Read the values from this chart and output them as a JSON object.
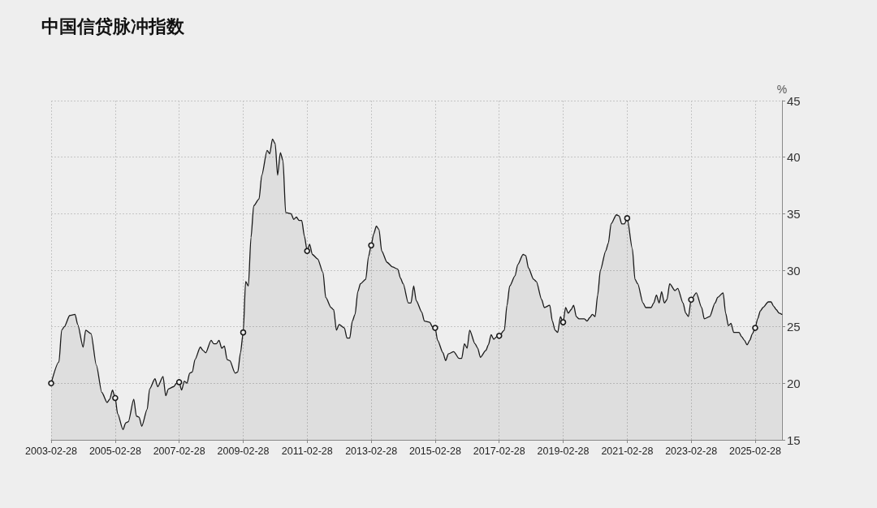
{
  "chart_data": {
    "type": "area",
    "title": "中国信贷脉冲指数",
    "ylabel": "%",
    "xlim": [
      "2003-02-28",
      "2025-12-31"
    ],
    "xticks": [
      "2003-02-28",
      "2005-02-28",
      "2007-02-28",
      "2009-02-28",
      "2011-02-28",
      "2013-02-28",
      "2015-02-28",
      "2017-02-28",
      "2019-02-28",
      "2021-02-28",
      "2023-02-28",
      "2025-02-28"
    ],
    "ylim": [
      15,
      45
    ],
    "yticks": [
      15,
      20,
      25,
      30,
      35,
      40,
      45
    ],
    "grid": true,
    "series": [
      {
        "color": "#1a1a1a",
        "marker": "none",
        "x": [
          "2003-02-28",
          "2003-05-28",
          "2003-06-28",
          "2003-07-28",
          "2003-09-28",
          "2003-11-28",
          "2003-12-28",
          "2004-02-28",
          "2004-03-28",
          "2004-05-28",
          "2004-07-28",
          "2004-09-28",
          "2004-11-28",
          "2004-12-28",
          "2005-01-28",
          "2005-02-28",
          "2005-03-28",
          "2005-05-28",
          "2005-06-28",
          "2005-07-28",
          "2005-09-28",
          "2005-10-28",
          "2005-11-28",
          "2005-12-28",
          "2006-02-28",
          "2006-03-28",
          "2006-05-28",
          "2006-06-28",
          "2006-08-28",
          "2006-09-28",
          "2006-10-28",
          "2006-12-28",
          "2007-01-28",
          "2007-02-28",
          "2007-03-28",
          "2007-04-28",
          "2007-05-28",
          "2007-06-28",
          "2007-07-28",
          "2007-08-28",
          "2007-10-28",
          "2007-11-28",
          "2007-12-28",
          "2008-02-28",
          "2008-03-28",
          "2008-04-28",
          "2008-05-28",
          "2008-06-28",
          "2008-07-28",
          "2008-08-28",
          "2008-09-28",
          "2008-11-28",
          "2008-12-28",
          "2009-01-28",
          "2009-02-28",
          "2009-03-28",
          "2009-04-28",
          "2009-05-28",
          "2009-06-28",
          "2009-08-28",
          "2009-09-28",
          "2009-11-28",
          "2009-12-28",
          "2010-01-28",
          "2010-02-28",
          "2010-03-28",
          "2010-04-28",
          "2010-05-28",
          "2010-06-28",
          "2010-08-28",
          "2010-09-28",
          "2010-10-28",
          "2010-11-28",
          "2010-12-28",
          "2011-01-28",
          "2011-02-28",
          "2011-03-28",
          "2011-04-28",
          "2011-06-28",
          "2011-08-28",
          "2011-09-28",
          "2011-11-28",
          "2011-12-28",
          "2012-01-28",
          "2012-02-28",
          "2012-04-28",
          "2012-05-28",
          "2012-06-28",
          "2012-07-28",
          "2012-08-28",
          "2012-09-28",
          "2012-10-28",
          "2012-12-28",
          "2013-01-28",
          "2013-02-28",
          "2013-03-28",
          "2013-04-28",
          "2013-05-28",
          "2013-06-28",
          "2013-08-28",
          "2013-10-28",
          "2013-12-28",
          "2014-01-28",
          "2014-02-28",
          "2014-04-28",
          "2014-05-28",
          "2014-06-28",
          "2014-07-28",
          "2014-09-28",
          "2014-10-28",
          "2014-12-28",
          "2015-01-28",
          "2015-02-28",
          "2015-03-28",
          "2015-05-28",
          "2015-06-28",
          "2015-07-28",
          "2015-09-28",
          "2015-11-28",
          "2015-12-28",
          "2016-01-28",
          "2016-02-28",
          "2016-03-28",
          "2016-05-28",
          "2016-06-28",
          "2016-07-28",
          "2016-09-28",
          "2016-10-28",
          "2016-11-28",
          "2016-12-28",
          "2017-01-28",
          "2017-02-28",
          "2017-04-28",
          "2017-05-28",
          "2017-06-28",
          "2017-08-28",
          "2017-09-28",
          "2017-11-28",
          "2017-12-28",
          "2018-01-28",
          "2018-03-28",
          "2018-04-28",
          "2018-06-28",
          "2018-07-28",
          "2018-09-28",
          "2018-10-28",
          "2018-11-28",
          "2018-12-28",
          "2019-01-28",
          "2019-02-28",
          "2019-03-28",
          "2019-04-28",
          "2019-05-28",
          "2019-06-28",
          "2019-07-28",
          "2019-08-28",
          "2019-10-28",
          "2019-11-28",
          "2019-12-28",
          "2020-01-28",
          "2020-02-28",
          "2020-03-28",
          "2020-04-28",
          "2020-06-28",
          "2020-07-28",
          "2020-08-28",
          "2020-10-28",
          "2020-11-28",
          "2020-12-28",
          "2021-01-28",
          "2021-02-28",
          "2021-04-28",
          "2021-05-28",
          "2021-06-28",
          "2021-08-28",
          "2021-09-28",
          "2021-11-28",
          "2021-12-28",
          "2022-01-28",
          "2022-02-28",
          "2022-03-28",
          "2022-04-28",
          "2022-05-28",
          "2022-06-28",
          "2022-08-28",
          "2022-09-28",
          "2022-11-28",
          "2022-12-28",
          "2023-01-28",
          "2023-02-28",
          "2023-04-28",
          "2023-06-28",
          "2023-07-28",
          "2023-09-28",
          "2023-11-28",
          "2023-12-28",
          "2024-02-28",
          "2024-03-28",
          "2024-04-28",
          "2024-05-28",
          "2024-06-28",
          "2024-08-28",
          "2024-09-28",
          "2024-10-28",
          "2024-11-28",
          "2024-12-28",
          "2025-01-28",
          "2025-02-28",
          "2025-03-28",
          "2025-04-28",
          "2025-05-28",
          "2025-07-28",
          "2025-08-28",
          "2025-09-28",
          "2025-10-28",
          "2025-11-28",
          "2025-12-28"
        ],
        "values": [
          20.0,
          21.9,
          24.7,
          25.0,
          26.0,
          26.1,
          25.2,
          23.2,
          24.7,
          24.4,
          21.6,
          19.2,
          18.3,
          18.6,
          19.4,
          18.7,
          17.3,
          15.9,
          16.5,
          16.6,
          18.6,
          17.1,
          17.0,
          16.2,
          17.7,
          19.5,
          20.4,
          19.7,
          20.6,
          18.9,
          19.5,
          19.7,
          20.0,
          20.1,
          19.4,
          20.2,
          20.0,
          20.9,
          21.0,
          22.1,
          23.2,
          22.9,
          22.7,
          23.8,
          23.5,
          23.5,
          23.8,
          23.1,
          23.3,
          22.1,
          22.0,
          20.9,
          21.0,
          22.7,
          24.5,
          29.0,
          28.6,
          32.9,
          35.7,
          36.3,
          38.4,
          40.6,
          40.3,
          41.6,
          41.2,
          38.4,
          40.4,
          39.7,
          35.1,
          35.0,
          34.5,
          34.7,
          34.4,
          34.4,
          33.0,
          31.7,
          32.3,
          31.4,
          31.0,
          29.8,
          27.6,
          26.7,
          26.5,
          24.7,
          25.2,
          24.9,
          24.0,
          24.0,
          25.5,
          26.1,
          28.1,
          28.8,
          29.2,
          31.2,
          32.2,
          33.2,
          33.9,
          33.6,
          31.7,
          30.7,
          30.3,
          30.1,
          29.3,
          28.8,
          27.1,
          27.1,
          28.6,
          27.3,
          26.3,
          25.5,
          25.4,
          25.0,
          24.9,
          23.8,
          22.7,
          22.0,
          22.6,
          22.8,
          22.2,
          22.2,
          23.5,
          23.1,
          24.7,
          23.5,
          23.1,
          22.3,
          22.9,
          23.4,
          24.3,
          23.9,
          24.1,
          24.2,
          24.7,
          26.9,
          28.6,
          29.5,
          30.5,
          31.4,
          31.3,
          30.2,
          29.2,
          29.0,
          27.4,
          26.7,
          26.9,
          25.5,
          24.7,
          24.5,
          25.9,
          25.4,
          26.7,
          26.2,
          26.5,
          26.9,
          25.9,
          25.7,
          25.7,
          25.5,
          25.8,
          26.1,
          25.9,
          27.8,
          30.0,
          31.7,
          32.4,
          34.1,
          34.9,
          34.8,
          34.1,
          34.1,
          34.6,
          31.9,
          29.2,
          28.8,
          27.1,
          26.7,
          26.7,
          27.1,
          27.8,
          27.1,
          28.1,
          27.1,
          27.4,
          28.8,
          28.2,
          28.4,
          27.1,
          26.2,
          25.9,
          27.4,
          28.0,
          26.7,
          25.7,
          25.9,
          27.1,
          27.6,
          28.0,
          26.2,
          25.1,
          25.3,
          24.5,
          24.5,
          24.1,
          23.8,
          23.4,
          23.8,
          24.4,
          24.9,
          25.7,
          26.4,
          26.7,
          27.2,
          27.2,
          26.8,
          26.5,
          26.2,
          26.1
        ]
      },
      {
        "type": "scatter",
        "color": "#1a1a1a",
        "marker": "circle",
        "x": [
          "2003-02-28",
          "2005-02-28",
          "2007-02-28",
          "2009-02-28",
          "2011-02-28",
          "2013-02-28",
          "2015-02-28",
          "2017-02-28",
          "2019-02-28",
          "2021-02-28",
          "2023-02-28",
          "2025-02-28"
        ],
        "values": [
          20.0,
          18.7,
          20.1,
          24.5,
          31.7,
          32.2,
          24.9,
          24.2,
          25.4,
          34.6,
          27.4,
          24.9
        ]
      }
    ]
  }
}
